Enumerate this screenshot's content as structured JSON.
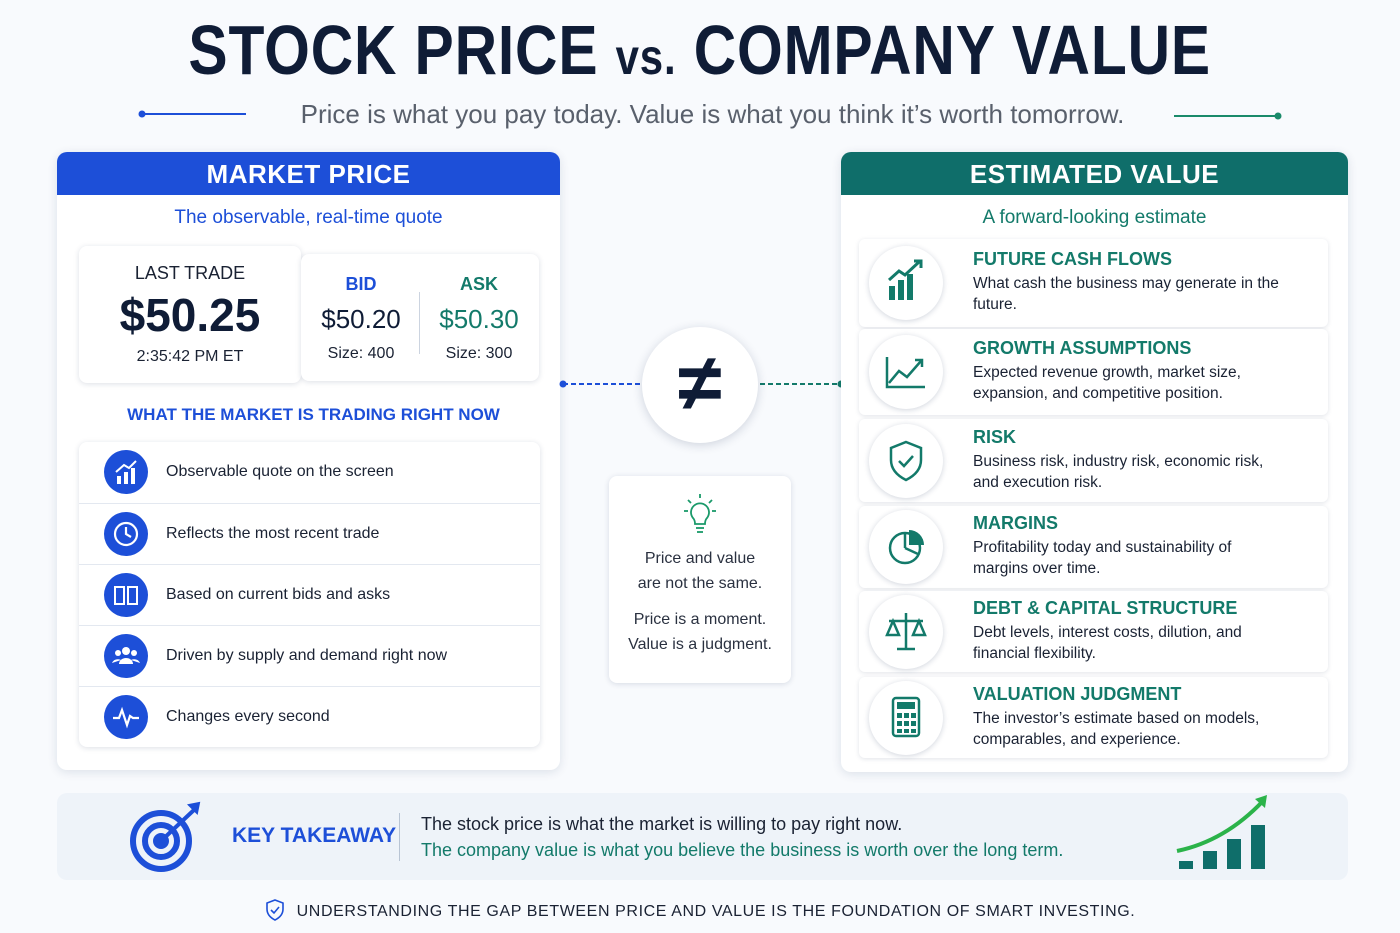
{
  "header": {
    "title_left": "STOCK PRICE",
    "title_vs": "vs.",
    "title_right": "COMPANY VALUE",
    "subtitle": "Price is what you pay today. Value is what you think it’s worth tomorrow."
  },
  "market_price": {
    "title": "MARKET PRICE",
    "subtitle": "The observable, real-time quote",
    "last_trade": {
      "label": "LAST TRADE",
      "price": "$50.25",
      "time": "2:35:42 PM ET"
    },
    "bid": {
      "label": "BID",
      "price": "$50.20",
      "size": "Size: 400"
    },
    "ask": {
      "label": "ASK",
      "price": "$50.30",
      "size": "Size: 300"
    },
    "section_title": "WHAT THE MARKET IS TRADING RIGHT NOW",
    "items": [
      "Observable quote on the screen",
      "Reflects the most recent trade",
      "Based on current bids and asks",
      "Driven by supply and demand right now",
      "Changes every second"
    ]
  },
  "center": {
    "symbol": "≠",
    "lines": [
      "Price and value",
      "are not the same.",
      "Price is a moment.",
      "Value is a judgment."
    ]
  },
  "estimated_value": {
    "title": "ESTIMATED VALUE",
    "subtitle": "A forward-looking estimate",
    "items": [
      {
        "title": "FUTURE CASH FLOWS",
        "text": "What cash the business may generate in the future."
      },
      {
        "title": "GROWTH ASSUMPTIONS",
        "text": "Expected revenue growth, market size, expansion, and competitive position."
      },
      {
        "title": "RISK",
        "text": "Business risk, industry risk, economic risk, and execution risk."
      },
      {
        "title": "MARGINS",
        "text": "Profitability today and sustainability of margins over time."
      },
      {
        "title": "DEBT & CAPITAL STRUCTURE",
        "text": "Debt levels, interest costs, dilution, and financial flexibility."
      },
      {
        "title": "VALUATION JUDGMENT",
        "text": "The investor’s estimate based on models, comparables, and experience."
      }
    ]
  },
  "takeaway": {
    "label": "KEY TAKEAWAY",
    "line_1": "The stock price is what the market is willing to pay right now.",
    "line_2": "The company value is what you believe the business is worth over the long term."
  },
  "footer": "UNDERSTANDING THE GAP BETWEEN PRICE AND VALUE IS THE FOUNDATION OF SMART INVESTING."
}
